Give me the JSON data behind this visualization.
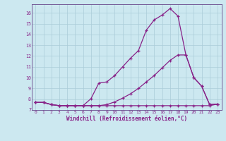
{
  "title": "",
  "xlabel": "Windchill (Refroidissement éolien,°C)",
  "ylabel": "",
  "background_color": "#cce8f0",
  "grid_color": "#aaccd8",
  "line_color": "#882288",
  "spine_color": "#664488",
  "xlim": [
    -0.5,
    23.5
  ],
  "ylim": [
    7,
    16.8
  ],
  "xticks": [
    0,
    1,
    2,
    3,
    4,
    5,
    6,
    7,
    8,
    9,
    10,
    11,
    12,
    13,
    14,
    15,
    16,
    17,
    18,
    19,
    20,
    21,
    22,
    23
  ],
  "yticks": [
    7,
    8,
    9,
    10,
    11,
    12,
    13,
    14,
    15,
    16
  ],
  "line1_x": [
    0,
    1,
    2,
    3,
    4,
    5,
    6,
    7,
    8,
    9,
    10,
    11,
    12,
    13,
    14,
    15,
    16,
    17,
    18,
    19,
    20,
    21,
    22,
    23
  ],
  "line1_y": [
    7.7,
    7.7,
    7.5,
    7.4,
    7.4,
    7.4,
    7.4,
    7.4,
    7.4,
    7.4,
    7.4,
    7.4,
    7.4,
    7.4,
    7.4,
    7.4,
    7.4,
    7.4,
    7.4,
    7.4,
    7.4,
    7.4,
    7.4,
    7.55
  ],
  "line2_x": [
    0,
    1,
    2,
    3,
    4,
    5,
    6,
    7,
    8,
    9,
    10,
    11,
    12,
    13,
    14,
    15,
    16,
    17,
    18,
    19,
    20,
    21,
    22,
    23
  ],
  "line2_y": [
    7.7,
    7.7,
    7.5,
    7.4,
    7.4,
    7.4,
    7.4,
    8.05,
    9.5,
    9.6,
    10.2,
    11.0,
    11.8,
    12.5,
    14.4,
    15.35,
    15.8,
    16.4,
    15.7,
    12.1,
    10.0,
    9.2,
    7.5,
    7.55
  ],
  "line3_x": [
    0,
    1,
    2,
    3,
    4,
    5,
    6,
    7,
    8,
    9,
    10,
    11,
    12,
    13,
    14,
    15,
    16,
    17,
    18,
    19,
    20,
    21,
    22,
    23
  ],
  "line3_y": [
    7.7,
    7.7,
    7.5,
    7.4,
    7.4,
    7.4,
    7.4,
    7.4,
    7.4,
    7.5,
    7.75,
    8.1,
    8.5,
    9.0,
    9.6,
    10.2,
    10.9,
    11.6,
    12.1,
    12.1,
    10.0,
    9.2,
    7.5,
    7.55
  ]
}
